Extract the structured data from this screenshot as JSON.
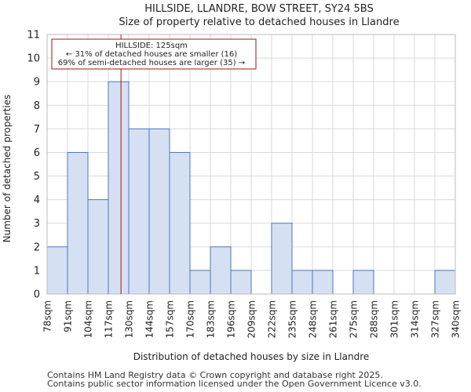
{
  "chart_data": {
    "type": "histogram",
    "title": "HILLSIDE, LLANDRE, BOW STREET, SY24 5BS",
    "subtitle": "Size of property relative to detached houses in Llandre",
    "xlabel": "Distribution of detached houses by size in Llandre",
    "ylabel": "Number of detached properties",
    "categories": [
      "78sqm",
      "91sqm",
      "104sqm",
      "117sqm",
      "130sqm",
      "144sqm",
      "157sqm",
      "170sqm",
      "183sqm",
      "196sqm",
      "209sqm",
      "222sqm",
      "235sqm",
      "248sqm",
      "261sqm",
      "275sqm",
      "288sqm",
      "301sqm",
      "314sqm",
      "327sqm",
      "340sqm"
    ],
    "values": [
      2,
      6,
      4,
      9,
      7,
      7,
      6,
      1,
      2,
      1,
      0,
      3,
      1,
      1,
      0,
      1,
      0,
      0,
      0,
      1
    ],
    "ylim": [
      0,
      11
    ],
    "yticks": [
      0,
      1,
      2,
      3,
      4,
      5,
      6,
      7,
      8,
      9,
      10,
      11
    ],
    "grid": true,
    "bar_color": "#d6e0f3",
    "bar_edge_color": "#4a7ab8",
    "marker": {
      "value_index": 3.62,
      "color": "#aa1111",
      "label_line1": "HILLSIDE: 125sqm",
      "label_line2": "← 31% of detached houses are smaller (16)",
      "label_line3": "69% of semi-detached houses are larger (35) →"
    }
  },
  "footer": {
    "line1": "Contains HM Land Registry data © Crown copyright and database right 2025.",
    "line2": "Contains public sector information licensed under the Open Government Licence v3.0."
  }
}
